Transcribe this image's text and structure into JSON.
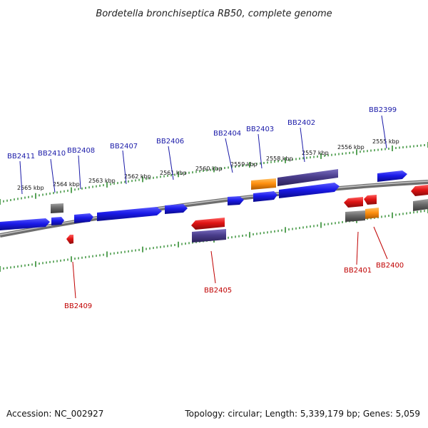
{
  "title": "Bordetella bronchiseptica RB50, complete genome",
  "footer": {
    "accession": "Accession: NC_002927",
    "summary": "Topology: circular; Length: 5,339,179 bp; Genes: 5,059"
  },
  "scale": {
    "unit": "kbp",
    "labels": [
      "2565 kbp",
      "2564 kbp",
      "2563 kbp",
      "2562 kbp",
      "2561 kbp",
      "2560 kbp",
      "2559 kbp",
      "2558 kbp",
      "2557 kbp",
      "2556 kbp",
      "2555 kbp"
    ]
  },
  "gene_labels": {
    "top": [
      "BB2411",
      "BB2410",
      "BB2408",
      "BB2407",
      "BB2406",
      "BB2404",
      "BB2403",
      "BB2402",
      "BB2399"
    ],
    "bottom": [
      "BB2409",
      "BB2405",
      "BB2401",
      "BB2400"
    ]
  },
  "colors": {
    "backbone": "#8a8a8a",
    "tick": "#2e8b2e",
    "blue": "#1616e6",
    "purple": "#4a3d8c",
    "red": "#e01414",
    "orange": "#ff9010",
    "gray": "#6a6a6a",
    "top_label": "#1a1aa8",
    "bottom_label": "#c00000"
  }
}
